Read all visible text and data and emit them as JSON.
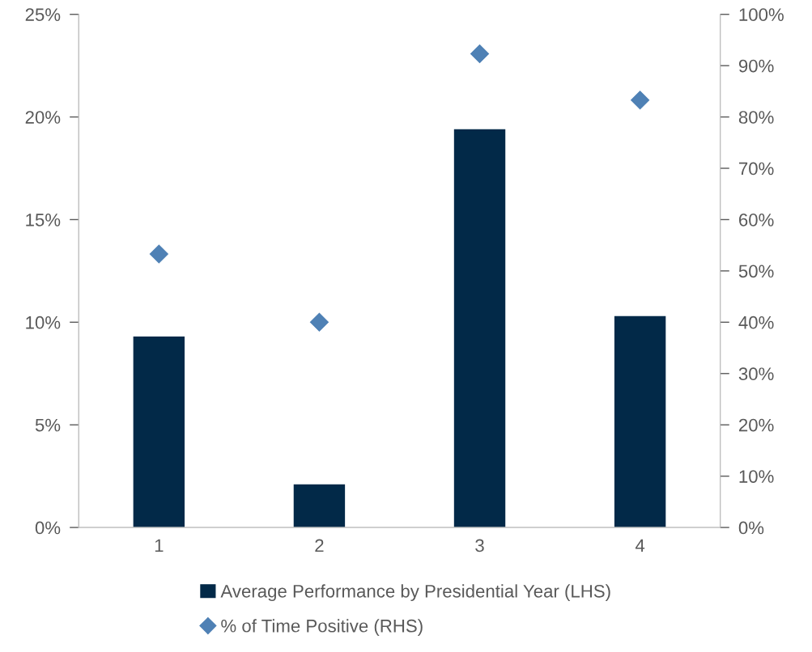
{
  "chart_data": {
    "type": "bar",
    "categories": [
      "1",
      "2",
      "3",
      "4"
    ],
    "series": [
      {
        "name": "Average Performance by Presidential Year (LHS)",
        "color": "#022948",
        "values": [
          9.3,
          2.1,
          19.4,
          10.3
        ]
      },
      {
        "name": "% of Time Positive (RHS)",
        "type": "scatter",
        "color": "#4f81b5",
        "axis": "y2",
        "marker": "diamond",
        "values": [
          53.3,
          40,
          92.3,
          83.3
        ]
      }
    ],
    "ylim": [
      0,
      25
    ],
    "yticks": [
      {
        "value": 0,
        "label": "0%"
      },
      {
        "value": 5,
        "label": "5%"
      },
      {
        "value": 10,
        "label": "10%"
      },
      {
        "value": 15,
        "label": "15%"
      },
      {
        "value": 20,
        "label": "20%"
      },
      {
        "value": 25,
        "label": "25%"
      }
    ],
    "y2lim": [
      0,
      100
    ],
    "y2ticks": [
      {
        "value": 0,
        "label": "0%"
      },
      {
        "value": 10,
        "label": "10%"
      },
      {
        "value": 20,
        "label": "20%"
      },
      {
        "value": 30,
        "label": "30%"
      },
      {
        "value": 40,
        "label": "40%"
      },
      {
        "value": 50,
        "label": "50%"
      },
      {
        "value": 60,
        "label": "60%"
      },
      {
        "value": 70,
        "label": "70%"
      },
      {
        "value": 80,
        "label": "80%"
      },
      {
        "value": 90,
        "label": "90%"
      },
      {
        "value": 100,
        "label": "100%"
      }
    ],
    "grid": false,
    "legend": "bottom"
  }
}
